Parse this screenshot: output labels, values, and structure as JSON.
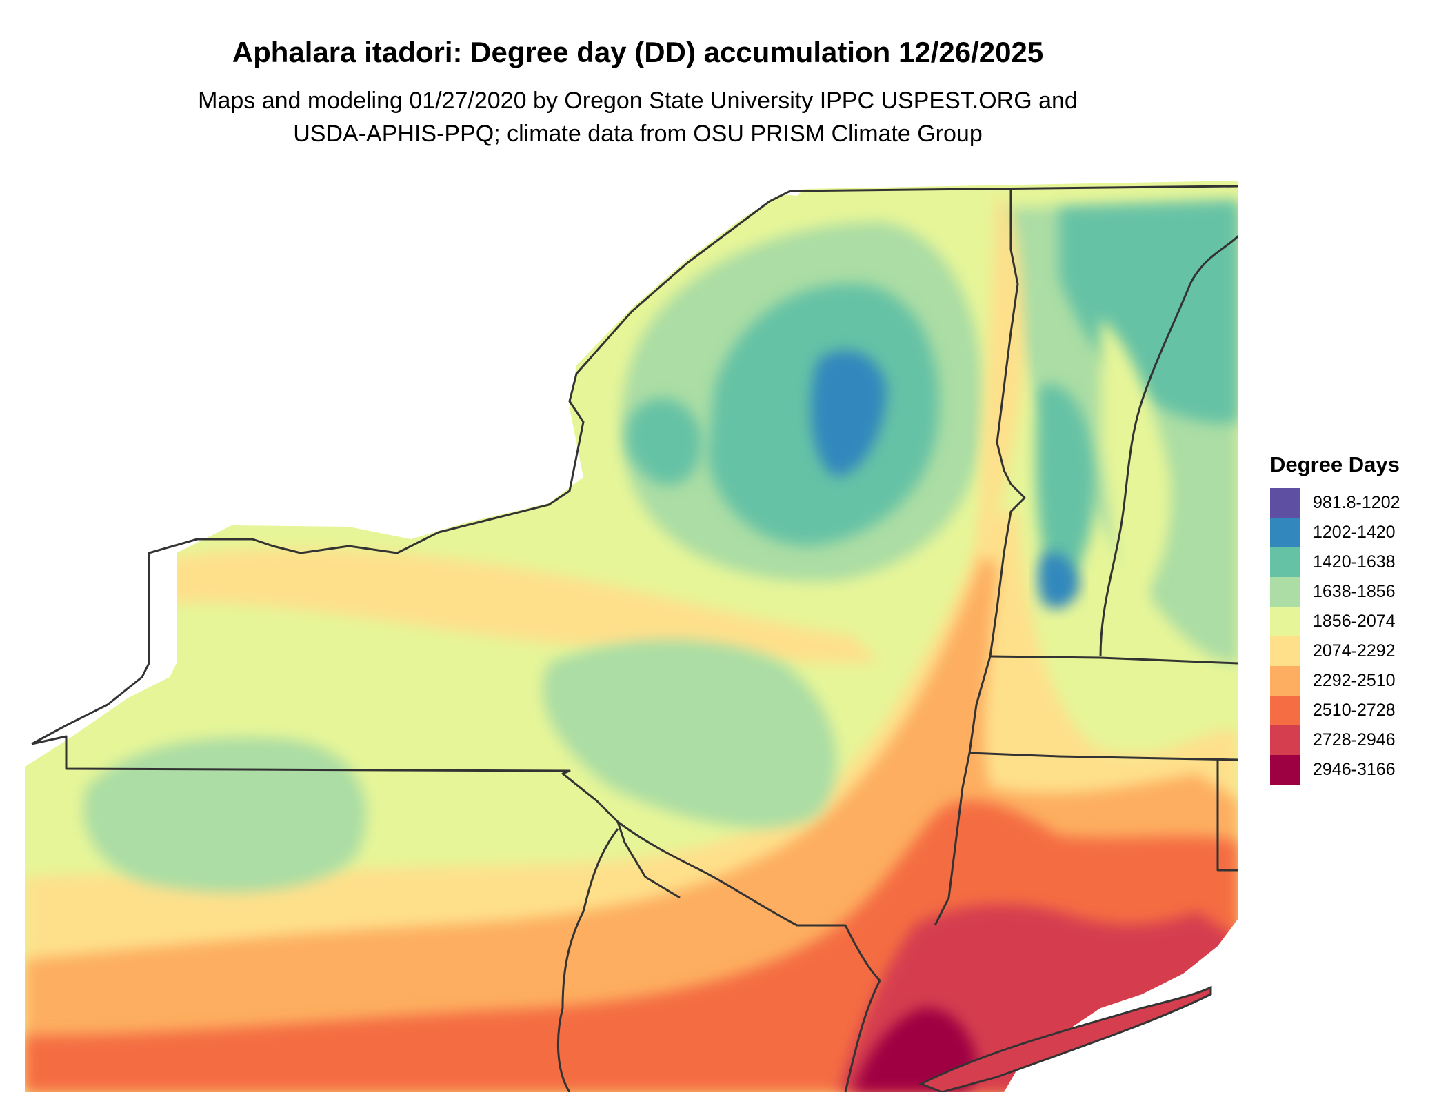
{
  "title": "Aphalara itadori: Degree day (DD) accumulation 12/26/2025",
  "subtitle_line1": "Maps and modeling 01/27/2020 by Oregon State University IPPC USPEST.ORG and",
  "subtitle_line2": "USDA-APHIS-PPQ; climate data from OSU PRISM Climate Group",
  "legend": {
    "title": "Degree Days",
    "items": [
      {
        "label": "981.8-1202",
        "color": "#5e4fa2"
      },
      {
        "label": "1202-1420",
        "color": "#3288bd"
      },
      {
        "label": "1420-1638",
        "color": "#66c2a5"
      },
      {
        "label": "1638-1856",
        "color": "#abdda4"
      },
      {
        "label": "1856-2074",
        "color": "#e6f598"
      },
      {
        "label": "2074-2292",
        "color": "#fee08b"
      },
      {
        "label": "2292-2510",
        "color": "#fdae61"
      },
      {
        "label": "2510-2728",
        "color": "#f46d43"
      },
      {
        "label": "2728-2946",
        "color": "#d53e4f"
      },
      {
        "label": "2946-3166",
        "color": "#9e0142"
      }
    ]
  }
}
